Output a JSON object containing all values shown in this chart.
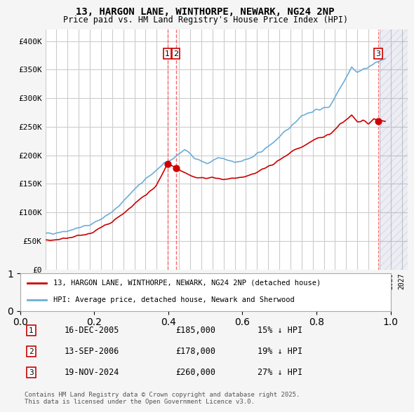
{
  "title_line1": "13, HARGON LANE, WINTHORPE, NEWARK, NG24 2NP",
  "title_line2": "Price paid vs. HM Land Registry's House Price Index (HPI)",
  "ylabel": "",
  "xlabel": "",
  "ylim": [
    0,
    420000
  ],
  "yticks": [
    0,
    50000,
    100000,
    150000,
    200000,
    250000,
    300000,
    350000,
    400000
  ],
  "ytick_labels": [
    "£0",
    "£50K",
    "£100K",
    "£150K",
    "£200K",
    "£250K",
    "£300K",
    "£350K",
    "£400K"
  ],
  "xlim_start": 1995.0,
  "xlim_end": 2027.5,
  "hpi_color": "#6baed6",
  "price_color": "#cc0000",
  "sale_marker_color": "#cc0000",
  "annotation_box_color": "#cc0000",
  "vline_color": "#ff6666",
  "hatch_color": "#aaaacc",
  "legend_label_red": "13, HARGON LANE, WINTHORPE, NEWARK, NG24 2NP (detached house)",
  "legend_label_blue": "HPI: Average price, detached house, Newark and Sherwood",
  "sale1_date_label": "16-DEC-2005",
  "sale1_price_label": "£185,000",
  "sale1_hpi_label": "15% ↓ HPI",
  "sale2_date_label": "13-SEP-2006",
  "sale2_price_label": "£178,000",
  "sale2_hpi_label": "19% ↓ HPI",
  "sale3_date_label": "19-NOV-2024",
  "sale3_price_label": "£260,000",
  "sale3_hpi_label": "27% ↓ HPI",
  "sale1_x": 2005.96,
  "sale1_y": 185000,
  "sale2_x": 2006.71,
  "sale2_y": 178000,
  "sale3_x": 2024.88,
  "sale3_y": 260000,
  "footnote": "Contains HM Land Registry data © Crown copyright and database right 2025.\nThis data is licensed under the Open Government Licence v3.0.",
  "background_color": "#f5f5f5",
  "plot_bg_color": "#ffffff",
  "grid_color": "#cccccc"
}
